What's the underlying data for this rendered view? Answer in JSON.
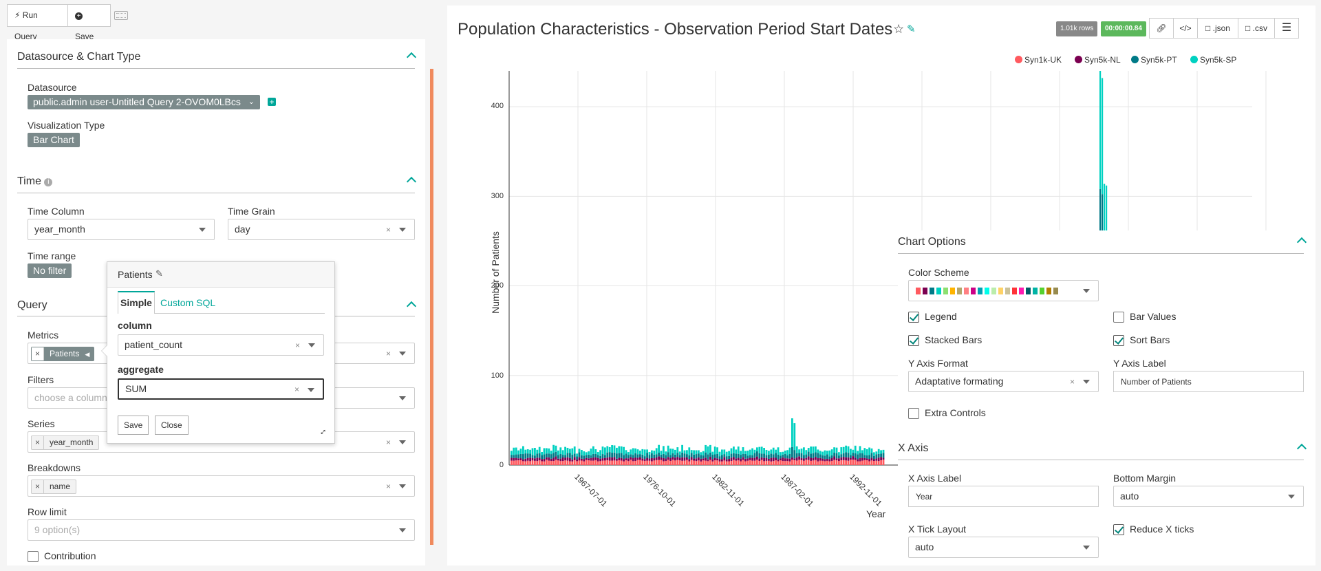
{
  "toolbar": {
    "run_query": "Run Query",
    "save": "Save"
  },
  "left": {
    "datasource_section": "Datasource & Chart Type",
    "datasource_label": "Datasource",
    "datasource_value": "public.admin user-Untitled Query 2-OVOM0LBcs",
    "viz_label": "Visualization Type",
    "viz_value": "Bar Chart",
    "time_section": "Time",
    "time_column_label": "Time Column",
    "time_column_value": "year_month",
    "time_grain_label": "Time Grain",
    "time_grain_value": "day",
    "time_range_label": "Time range",
    "time_range_value": "No filter",
    "query_section": "Query",
    "metrics_label": "Metrics",
    "metrics_chip": "Patients",
    "filters_label": "Filters",
    "filters_placeholder": "choose a column",
    "series_label": "Series",
    "series_chip": "year_month",
    "breakdowns_label": "Breakdowns",
    "breakdowns_chip": "name",
    "row_limit_label": "Row limit",
    "row_limit_placeholder": "9 option(s)",
    "contribution_label": "Contribution"
  },
  "popover": {
    "title": "Patients",
    "tab_simple": "Simple",
    "tab_custom_sql": "Custom SQL",
    "column_label": "column",
    "column_value": "patient_count",
    "aggregate_label": "aggregate",
    "aggregate_value": "SUM",
    "save": "Save",
    "close": "Close"
  },
  "header": {
    "title": "Population Characteristics - Observation Period Start Dates",
    "rows_badge": "1.01k rows",
    "time_badge": "00:00:00.84",
    "json_btn": ".json",
    "csv_btn": ".csv"
  },
  "colors": {
    "accent": "#00a699",
    "uk": "#ff5a5f",
    "nl": "#7b0051",
    "pt": "#007a87",
    "sp": "#00d1c1"
  },
  "chart_data": {
    "type": "bar",
    "stacked": true,
    "ylabel": "Number of Patients",
    "xlabel": "Year",
    "ylim": [
      0,
      440
    ],
    "yticks": [
      0,
      100,
      200,
      300,
      400
    ],
    "xticks": [
      "1967-07-01",
      "1976-10-01",
      "1982-11-01",
      "1987-02-01",
      "1992-11-01"
    ],
    "series": [
      {
        "name": "Syn1k-UK",
        "color": "#ff5a5f"
      },
      {
        "name": "Syn5k-NL",
        "color": "#7b0051"
      },
      {
        "name": "Syn5k-PT",
        "color": "#007a87"
      },
      {
        "name": "Syn5k-SP",
        "color": "#00d1c1"
      }
    ],
    "legend_position": "top-right",
    "grid": true
  },
  "options": {
    "chart_options_section": "Chart Options",
    "color_scheme_label": "Color Scheme",
    "palette": [
      "#ff5a5f",
      "#7b0051",
      "#007a87",
      "#00d1c1",
      "#8ce071",
      "#ffb400",
      "#b4a76c",
      "#ff8083",
      "#cc0086",
      "#00a1b3",
      "#00ffeb",
      "#bbedab",
      "#ffd266",
      "#cbc29a",
      "#ff3339",
      "#ff1ab1",
      "#005c66",
      "#00b3a5",
      "#55d12e",
      "#b37e00",
      "#988b4e"
    ],
    "legend_label": "Legend",
    "bar_values_label": "Bar Values",
    "stacked_bars_label": "Stacked Bars",
    "sort_bars_label": "Sort Bars",
    "y_axis_format_label": "Y Axis Format",
    "y_axis_format_value": "Adaptative formating",
    "y_axis_label_label": "Y Axis Label",
    "y_axis_label_value": "Number of Patients",
    "extra_controls_label": "Extra Controls",
    "x_axis_section": "X Axis",
    "x_axis_label_label": "X Axis Label",
    "x_axis_label_value": "Year",
    "bottom_margin_label": "Bottom Margin",
    "bottom_margin_value": "auto",
    "x_tick_layout_label": "X Tick Layout",
    "x_tick_layout_value": "auto",
    "reduce_x_ticks_label": "Reduce X ticks"
  }
}
